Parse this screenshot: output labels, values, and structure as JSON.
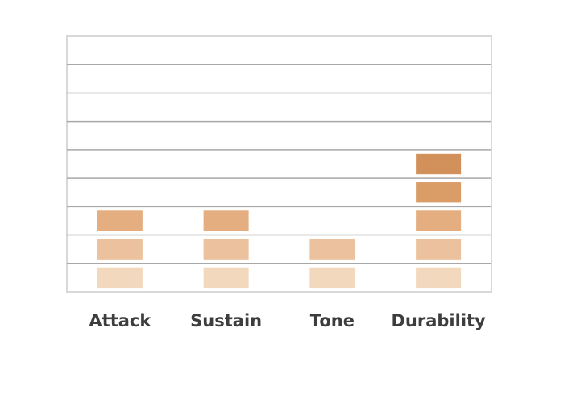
{
  "chart_data": {
    "type": "block-bar",
    "categories": [
      "Attack",
      "Sustain",
      "Tone",
      "Durability"
    ],
    "values": [
      3,
      3,
      2,
      5
    ],
    "colors": [
      "#f2d8bd",
      "#ebc29d",
      "#e4ae80",
      "#da9d68",
      "#d2915a"
    ],
    "ylim": [
      0,
      9
    ],
    "yticks": [
      1,
      2,
      3,
      4,
      5,
      6,
      7,
      8
    ],
    "grid": true
  }
}
